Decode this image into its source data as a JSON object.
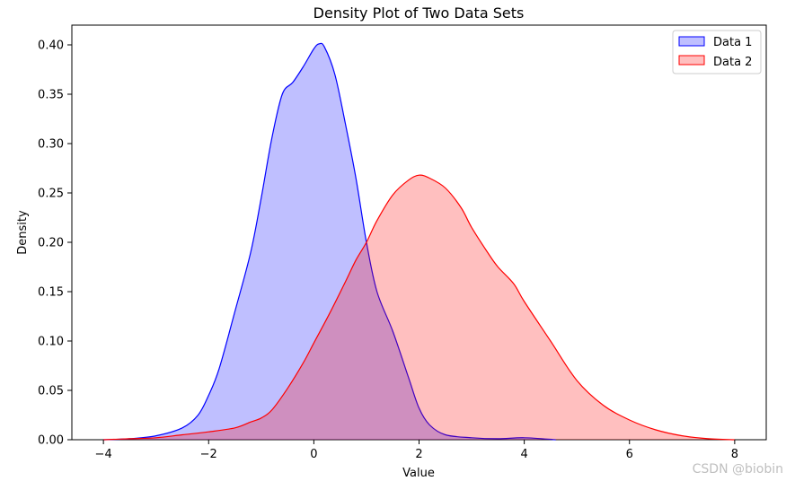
{
  "chart_data": {
    "type": "area",
    "title": "Density Plot of Two Data Sets",
    "xlabel": "Value",
    "ylabel": "Density",
    "xlim": [
      -4.6,
      8.6
    ],
    "ylim": [
      0,
      0.42
    ],
    "xticks": [
      -4,
      -2,
      0,
      2,
      4,
      6,
      8
    ],
    "xtick_labels": [
      "−4",
      "−2",
      "0",
      "2",
      "4",
      "6",
      "8"
    ],
    "yticks": [
      0.0,
      0.05,
      0.1,
      0.15,
      0.2,
      0.25,
      0.3,
      0.35,
      0.4
    ],
    "ytick_labels": [
      "0.00",
      "0.05",
      "0.10",
      "0.15",
      "0.20",
      "0.25",
      "0.30",
      "0.35",
      "0.40"
    ],
    "grid": false,
    "legend_position": "top-right",
    "series": [
      {
        "name": "Data 1",
        "line_color": "#0000ff",
        "fill_color": "#0000ff",
        "fill_opacity": 0.25,
        "x": [
          -4.0,
          -3.5,
          -3.0,
          -2.5,
          -2.2,
          -2.0,
          -1.8,
          -1.5,
          -1.2,
          -1.0,
          -0.8,
          -0.6,
          -0.4,
          -0.2,
          0.0,
          0.1,
          0.2,
          0.4,
          0.6,
          0.8,
          1.0,
          1.2,
          1.5,
          1.8,
          2.0,
          2.2,
          2.5,
          3.0,
          3.5,
          4.0,
          4.6
        ],
        "y": [
          0.0,
          0.001,
          0.004,
          0.012,
          0.025,
          0.045,
          0.072,
          0.13,
          0.19,
          0.245,
          0.305,
          0.35,
          0.362,
          0.378,
          0.396,
          0.401,
          0.398,
          0.37,
          0.32,
          0.265,
          0.2,
          0.15,
          0.11,
          0.063,
          0.032,
          0.015,
          0.005,
          0.002,
          0.001,
          0.002,
          0.0
        ]
      },
      {
        "name": "Data 2",
        "line_color": "#ff0000",
        "fill_color": "#ff0000",
        "fill_opacity": 0.25,
        "x": [
          -4.0,
          -3.5,
          -3.0,
          -2.5,
          -2.0,
          -1.5,
          -1.2,
          -1.0,
          -0.8,
          -0.5,
          -0.2,
          0.0,
          0.3,
          0.6,
          0.8,
          1.0,
          1.2,
          1.5,
          1.8,
          2.0,
          2.2,
          2.5,
          2.8,
          3.0,
          3.3,
          3.5,
          3.8,
          4.0,
          4.5,
          5.0,
          5.5,
          6.0,
          6.5,
          7.0,
          7.5,
          8.0
        ],
        "y": [
          0.0,
          0.001,
          0.002,
          0.005,
          0.008,
          0.012,
          0.018,
          0.022,
          0.03,
          0.052,
          0.078,
          0.098,
          0.128,
          0.16,
          0.182,
          0.2,
          0.222,
          0.248,
          0.263,
          0.268,
          0.265,
          0.255,
          0.235,
          0.215,
          0.19,
          0.175,
          0.158,
          0.14,
          0.1,
          0.06,
          0.035,
          0.02,
          0.01,
          0.004,
          0.001,
          0.0
        ]
      }
    ]
  },
  "watermark": "CSDN @biobin"
}
